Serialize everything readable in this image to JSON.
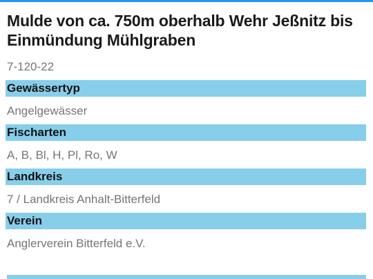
{
  "detail": {
    "title": "Mulde von ca. 750m oberhalb Wehr Jeßnitz bis Einmündung Mühlgraben",
    "code": "7-120-22",
    "sections": [
      {
        "label": "Gewässertyp",
        "value": "Angelgewässer"
      },
      {
        "label": "Fischarten",
        "value": "A, B, Bl, H, Pl, Ro, W"
      },
      {
        "label": "Landkreis",
        "value": "7 / Landkreis Anhalt-Bitterfeld"
      },
      {
        "label": "Verein",
        "value": "Anglerverein Bitterfeld e.V."
      }
    ]
  },
  "colors": {
    "accent": "#2196f3",
    "section_header_bg": "#87ceeb",
    "value_text": "#757575",
    "title_text": "#1a1a1a"
  }
}
